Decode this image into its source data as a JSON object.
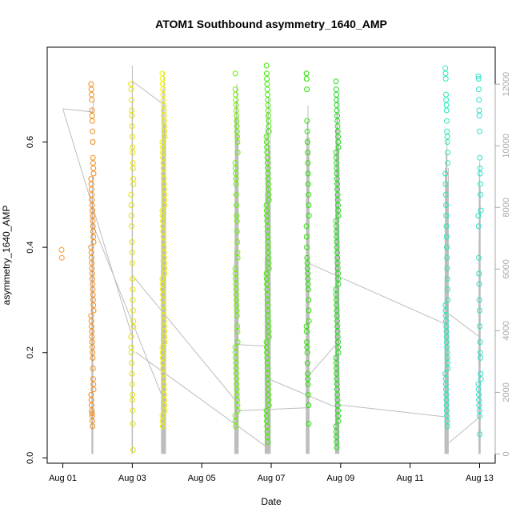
{
  "chart_data": {
    "type": "scatter",
    "title": "ATOM1 Southbound asymmetry_1640_AMP",
    "xlabel": "Date",
    "ylabel": "asymmetry_1640_AMP",
    "x_ticks": [
      "Aug 01",
      "Aug 03",
      "Aug 05",
      "Aug 07",
      "Aug 09",
      "Aug 11",
      "Aug 13"
    ],
    "x_tick_days": [
      1,
      3,
      5,
      7,
      9,
      11,
      13
    ],
    "xlim_days": [
      0.55,
      13.45
    ],
    "ylim": [
      -0.01,
      0.78
    ],
    "y_ticks": [
      "0.0",
      "0.2",
      "0.4",
      "0.6"
    ],
    "y_tick_values": [
      0.0,
      0.2,
      0.4,
      0.6
    ],
    "secondary_ylim": [
      -300,
      13200
    ],
    "secondary_y_ticks": [
      "0",
      "2000",
      "4000",
      "6000",
      "8000",
      "10000",
      "12000"
    ],
    "secondary_y_tick_values": [
      0,
      2000,
      4000,
      6000,
      8000,
      10000,
      12000
    ],
    "grid": false,
    "colors": {
      "aug01": "#f39a2a",
      "aug02": "#f08a1c",
      "aug03": "#e3e000",
      "aug04": "#f0f000",
      "aug06": "#6cf000",
      "aug07": "#44ea00",
      "aug08": "#28e000",
      "aug09": "#1fdc1a",
      "aug12": "#22e8b8",
      "aug13": "#26e0c8",
      "secondary_line": "#bdbdbd",
      "frame": "#000000",
      "right_axis": "#a8a8a8"
    },
    "scatter_clusters": [
      {
        "day": 1.0,
        "color_key": "aug01",
        "values": [
          0.395,
          0.38
        ]
      },
      {
        "day": 1.85,
        "color_key": "aug02",
        "values": [
          0.71,
          0.7,
          0.69,
          0.68,
          0.66,
          0.65,
          0.64,
          0.62,
          0.6,
          0.57,
          0.56,
          0.55,
          0.54,
          0.53,
          0.52,
          0.51,
          0.5,
          0.49,
          0.48,
          0.47,
          0.46,
          0.45,
          0.44,
          0.43,
          0.42,
          0.41,
          0.4,
          0.39,
          0.38,
          0.37,
          0.36,
          0.35,
          0.34,
          0.33,
          0.32,
          0.31,
          0.3,
          0.29,
          0.28,
          0.27,
          0.26,
          0.25,
          0.24,
          0.23,
          0.22,
          0.21,
          0.2,
          0.19,
          0.17,
          0.15,
          0.14,
          0.13,
          0.12,
          0.11,
          0.1,
          0.09,
          0.085,
          0.08,
          0.07,
          0.06
        ]
      },
      {
        "day": 3.0,
        "color_key": "aug03",
        "values": [
          0.71,
          0.7,
          0.68,
          0.66,
          0.65,
          0.63,
          0.61,
          0.59,
          0.58,
          0.56,
          0.55,
          0.53,
          0.52,
          0.5,
          0.48,
          0.46,
          0.44,
          0.41,
          0.39,
          0.37,
          0.34,
          0.32,
          0.3,
          0.28,
          0.26,
          0.25,
          0.23,
          0.21,
          0.2,
          0.18,
          0.16,
          0.14,
          0.12,
          0.11,
          0.09,
          0.065,
          0.015
        ]
      },
      {
        "day": 3.9,
        "color_key": "aug04",
        "values": [
          0.73,
          0.72,
          0.71,
          0.7,
          0.69,
          0.68,
          0.67,
          0.66,
          0.65,
          0.64,
          0.63,
          0.62,
          0.61,
          0.6,
          0.59,
          0.58,
          0.57,
          0.56,
          0.55,
          0.54,
          0.53,
          0.52,
          0.51,
          0.5,
          0.49,
          0.48,
          0.47,
          0.46,
          0.45,
          0.44,
          0.43,
          0.42,
          0.41,
          0.4,
          0.39,
          0.38,
          0.37,
          0.36,
          0.35,
          0.34,
          0.33,
          0.32,
          0.31,
          0.3,
          0.29,
          0.28,
          0.27,
          0.26,
          0.25,
          0.24,
          0.23,
          0.22,
          0.21,
          0.2,
          0.19,
          0.18,
          0.17,
          0.16,
          0.15,
          0.14,
          0.13,
          0.12,
          0.11,
          0.1,
          0.09,
          0.08,
          0.07,
          0.06
        ]
      },
      {
        "day": 6.0,
        "color_key": "aug06",
        "values": [
          0.73,
          0.7,
          0.69,
          0.68,
          0.67,
          0.66,
          0.65,
          0.64,
          0.63,
          0.62,
          0.61,
          0.6,
          0.58,
          0.56,
          0.55,
          0.54,
          0.53,
          0.52,
          0.5,
          0.48,
          0.46,
          0.45,
          0.43,
          0.41,
          0.39,
          0.38,
          0.36,
          0.35,
          0.34,
          0.33,
          0.32,
          0.31,
          0.3,
          0.29,
          0.28,
          0.27,
          0.25,
          0.24,
          0.22,
          0.21,
          0.2,
          0.19,
          0.18,
          0.17,
          0.16,
          0.15,
          0.14,
          0.13,
          0.12,
          0.11,
          0.1,
          0.09,
          0.08,
          0.07,
          0.06
        ]
      },
      {
        "day": 6.9,
        "color_key": "aug07",
        "values": [
          0.745,
          0.73,
          0.72,
          0.71,
          0.7,
          0.69,
          0.68,
          0.67,
          0.66,
          0.65,
          0.64,
          0.63,
          0.62,
          0.61,
          0.6,
          0.59,
          0.58,
          0.57,
          0.56,
          0.55,
          0.54,
          0.53,
          0.52,
          0.51,
          0.5,
          0.49,
          0.48,
          0.47,
          0.46,
          0.45,
          0.44,
          0.43,
          0.42,
          0.41,
          0.4,
          0.39,
          0.38,
          0.37,
          0.36,
          0.35,
          0.34,
          0.33,
          0.32,
          0.31,
          0.3,
          0.29,
          0.28,
          0.27,
          0.26,
          0.25,
          0.24,
          0.23,
          0.22,
          0.21,
          0.2,
          0.19,
          0.18,
          0.17,
          0.16,
          0.15,
          0.14,
          0.13,
          0.12,
          0.11,
          0.1,
          0.09,
          0.08,
          0.07,
          0.06,
          0.05,
          0.04,
          0.03
        ]
      },
      {
        "day": 8.05,
        "color_key": "aug08",
        "values": [
          0.73,
          0.72,
          0.7,
          0.64,
          0.62,
          0.6,
          0.58,
          0.56,
          0.54,
          0.52,
          0.5,
          0.48,
          0.46,
          0.44,
          0.42,
          0.4,
          0.38,
          0.37,
          0.36,
          0.35,
          0.34,
          0.33,
          0.32,
          0.3,
          0.28,
          0.26,
          0.25,
          0.24,
          0.22,
          0.21,
          0.2,
          0.18,
          0.16,
          0.15,
          0.14,
          0.12,
          0.1,
          0.065
        ]
      },
      {
        "day": 8.9,
        "color_key": "aug09",
        "values": [
          0.715,
          0.7,
          0.69,
          0.68,
          0.67,
          0.66,
          0.65,
          0.64,
          0.63,
          0.62,
          0.61,
          0.6,
          0.59,
          0.58,
          0.57,
          0.56,
          0.55,
          0.54,
          0.53,
          0.52,
          0.51,
          0.5,
          0.49,
          0.48,
          0.47,
          0.46,
          0.45,
          0.44,
          0.43,
          0.42,
          0.41,
          0.4,
          0.39,
          0.38,
          0.37,
          0.36,
          0.35,
          0.34,
          0.33,
          0.32,
          0.31,
          0.3,
          0.29,
          0.28,
          0.27,
          0.26,
          0.25,
          0.24,
          0.23,
          0.22,
          0.21,
          0.2,
          0.19,
          0.18,
          0.17,
          0.16,
          0.15,
          0.14,
          0.13,
          0.12,
          0.11,
          0.1,
          0.09,
          0.08,
          0.07,
          0.06,
          0.05,
          0.04,
          0.03,
          0.02
        ]
      },
      {
        "day": 12.05,
        "color_key": "aug12",
        "values": [
          0.74,
          0.73,
          0.72,
          0.69,
          0.68,
          0.67,
          0.66,
          0.64,
          0.62,
          0.61,
          0.6,
          0.58,
          0.56,
          0.54,
          0.52,
          0.5,
          0.48,
          0.46,
          0.44,
          0.42,
          0.4,
          0.38,
          0.36,
          0.34,
          0.32,
          0.3,
          0.29,
          0.28,
          0.27,
          0.26,
          0.25,
          0.24,
          0.23,
          0.22,
          0.21,
          0.2,
          0.19,
          0.18,
          0.17,
          0.16,
          0.15,
          0.14,
          0.13,
          0.12,
          0.11,
          0.1,
          0.09,
          0.08,
          0.07,
          0.06
        ]
      },
      {
        "day": 13.0,
        "color_key": "aug13",
        "values": [
          0.725,
          0.72,
          0.7,
          0.68,
          0.66,
          0.65,
          0.62,
          0.57,
          0.55,
          0.54,
          0.52,
          0.5,
          0.47,
          0.46,
          0.44,
          0.38,
          0.35,
          0.33,
          0.3,
          0.28,
          0.25,
          0.22,
          0.2,
          0.19,
          0.16,
          0.15,
          0.14,
          0.13,
          0.12,
          0.11,
          0.1,
          0.09,
          0.08,
          0.045
        ]
      }
    ],
    "secondary_series": {
      "color_key": "secondary_line",
      "segments": [
        [
          [
            1.0,
            11200
          ],
          [
            1.85,
            11100
          ],
          [
            1.9,
            11500
          ]
        ],
        [
          [
            1.0,
            11200
          ],
          [
            3.0,
            3800
          ]
        ],
        [
          [
            1.85,
            7500
          ],
          [
            3.85,
            1900
          ]
        ],
        [
          [
            3.0,
            12100
          ],
          [
            3.95,
            11300
          ]
        ],
        [
          [
            3.0,
            5800
          ],
          [
            6.0,
            1700
          ]
        ],
        [
          [
            3.1,
            3300
          ],
          [
            6.9,
            200
          ]
        ],
        [
          [
            6.0,
            3550
          ],
          [
            6.95,
            3500
          ]
        ],
        [
          [
            6.0,
            1400
          ],
          [
            8.05,
            1500
          ]
        ],
        [
          [
            7.0,
            2400
          ],
          [
            8.9,
            1500
          ]
        ],
        [
          [
            8.05,
            2500
          ],
          [
            8.9,
            3600
          ]
        ],
        [
          [
            8.05,
            6200
          ],
          [
            12.05,
            4200
          ]
        ],
        [
          [
            8.9,
            1600
          ],
          [
            12.05,
            1200
          ]
        ],
        [
          [
            12.05,
            4600
          ],
          [
            13.0,
            3800
          ]
        ],
        [
          [
            12.05,
            300
          ],
          [
            13.0,
            1200
          ]
        ]
      ],
      "spikes": [
        {
          "day": 1.85,
          "top": 9000,
          "width_days": 0.03
        },
        {
          "day": 3.0,
          "top": 12600,
          "width_days": 0.01
        },
        {
          "day": 3.9,
          "top": 12400,
          "width_days": 0.12
        },
        {
          "day": 6.0,
          "top": 12000,
          "width_days": 0.1
        },
        {
          "day": 6.9,
          "top": 11600,
          "width_days": 0.15
        },
        {
          "day": 8.05,
          "top": 11300,
          "width_days": 0.08
        },
        {
          "day": 8.9,
          "top": 11600,
          "width_days": 0.1
        },
        {
          "day": 12.05,
          "top": 10200,
          "width_days": 0.1
        },
        {
          "day": 13.0,
          "top": 9500,
          "width_days": 0.04
        }
      ]
    }
  }
}
